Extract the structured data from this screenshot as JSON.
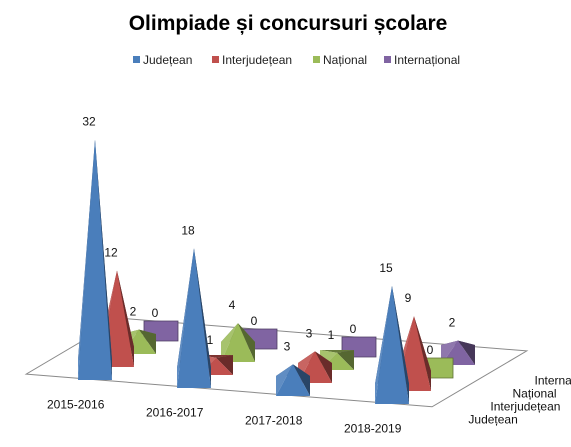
{
  "chart_data": {
    "type": "bar",
    "title": "Olimpiade și concursuri  școlare",
    "categories": [
      "2015-2016",
      "2016-2017",
      "2017-2018",
      "2018-2019"
    ],
    "series": [
      {
        "name": "Județean",
        "color": "#4a7ebb",
        "values": [
          32,
          18,
          3,
          15
        ]
      },
      {
        "name": "Interjudețean",
        "color": "#c0504d",
        "values": [
          12,
          1,
          3,
          9
        ]
      },
      {
        "name": "Național",
        "color": "#9bbb59",
        "values": [
          2,
          4,
          1,
          0
        ]
      },
      {
        "name": "Internațional",
        "color": "#8064a2",
        "values": [
          0,
          0,
          0,
          2
        ]
      }
    ],
    "shape": "pyramid",
    "legend_position": "top",
    "grid": false
  }
}
